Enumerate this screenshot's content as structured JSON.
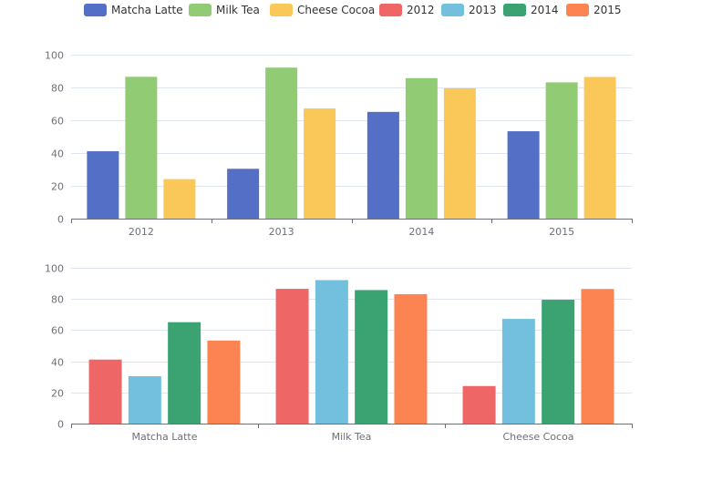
{
  "colors": {
    "Matcha Latte": "#5470c6",
    "Milk Tea": "#91cc75",
    "Cheese Cocoa": "#fac858",
    "2012": "#ee6666",
    "2013": "#73c0de",
    "2014": "#3ba272",
    "2015": "#fc8452"
  },
  "legend": [
    "Matcha Latte",
    "Milk Tea",
    "Cheese Cocoa",
    "2012",
    "2013",
    "2014",
    "2015"
  ],
  "chart_data": [
    {
      "type": "bar",
      "title": "",
      "categories": [
        "2012",
        "2013",
        "2014",
        "2015"
      ],
      "series": [
        {
          "name": "Matcha Latte",
          "values": [
            41.1,
            30.4,
            65.1,
            53.3
          ]
        },
        {
          "name": "Milk Tea",
          "values": [
            86.5,
            92.1,
            85.7,
            83.1
          ]
        },
        {
          "name": "Cheese Cocoa",
          "values": [
            24.1,
            67.2,
            79.5,
            86.4
          ]
        }
      ],
      "ylim": [
        0,
        100
      ],
      "yticks": [
        0,
        20,
        40,
        60,
        80,
        100
      ],
      "grid": true,
      "legend_position": "top"
    },
    {
      "type": "bar",
      "title": "",
      "categories": [
        "Matcha Latte",
        "Milk Tea",
        "Cheese Cocoa"
      ],
      "series": [
        {
          "name": "2012",
          "values": [
            41.1,
            86.5,
            24.1
          ]
        },
        {
          "name": "2013",
          "values": [
            30.4,
            92.1,
            67.2
          ]
        },
        {
          "name": "2014",
          "values": [
            65.1,
            85.7,
            79.5
          ]
        },
        {
          "name": "2015",
          "values": [
            53.3,
            83.1,
            86.4
          ]
        }
      ],
      "ylim": [
        0,
        100
      ],
      "yticks": [
        0,
        20,
        40,
        60,
        80,
        100
      ],
      "grid": true,
      "legend_position": "top"
    }
  ]
}
